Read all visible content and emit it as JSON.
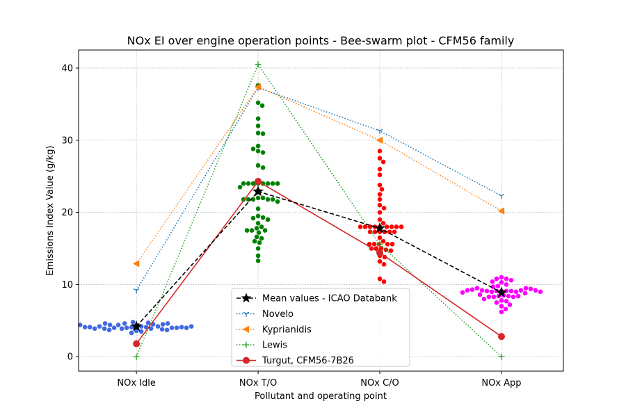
{
  "chart_data": {
    "type": "scatter",
    "title": "NOx EI over engine operation points - Bee-swarm plot - CFM56 family",
    "xlabel": "Pollutant and operating point",
    "ylabel": "Emissions Index Value (g/kg)",
    "categories": [
      "NOx Idle",
      "NOx T/O",
      "NOx C/O",
      "NOx App"
    ],
    "ylim": [
      -2,
      42.5
    ],
    "yticks": [
      0,
      10,
      20,
      30,
      40
    ],
    "grid": true,
    "legend_position": "lower-center",
    "swarm": [
      {
        "category": "NOx Idle",
        "color": "#4169e1",
        "values": [
          4.3,
          4.2,
          4.1,
          4.1,
          4.0,
          3.9,
          3.9,
          4.8,
          4.6,
          4.5,
          4.4,
          4.2,
          4.0,
          3.8,
          3.7,
          3.6,
          3.5,
          3.3,
          3.7,
          3.9,
          4.0,
          4.2,
          4.4,
          4.5,
          4.6,
          4.7,
          4.6,
          4.0,
          3.9,
          4.1,
          4.1,
          4.0,
          4.1,
          4.2,
          4.4
        ]
      },
      {
        "category": "NOx T/O",
        "color": "#008000",
        "values": [
          37.6,
          35.2,
          34.8,
          33.0,
          32.0,
          31.0,
          30.9,
          29.2,
          28.5,
          28.3,
          28.8,
          26.5,
          26.2,
          24.0,
          24.0,
          24.0,
          24.0,
          24.0,
          24.0,
          24.0,
          24.0,
          23.5,
          23.0,
          22.0,
          22.0,
          21.8,
          21.8,
          21.8,
          21.8,
          21.8,
          21.5,
          20.5,
          19.5,
          19.3,
          19.2,
          19.0,
          18.5,
          18.0,
          17.8,
          17.5,
          17.5,
          17.5,
          17.2,
          16.6,
          16.4,
          16.0,
          15.8,
          15.0,
          14.0,
          13.3
        ]
      },
      {
        "category": "NOx C/O",
        "color": "#ff0000",
        "values": [
          28.5,
          27.5,
          27.0,
          26.0,
          25.2,
          23.8,
          23.2,
          22.5,
          21.8,
          21.0,
          20.6,
          20.0,
          19.0,
          18.5,
          18.0,
          18.0,
          18.0,
          18.0,
          18.0,
          18.0,
          18.0,
          18.0,
          18.0,
          17.3,
          17.3,
          17.3,
          17.3,
          17.3,
          17.3,
          16.5,
          16.0,
          15.6,
          15.6,
          15.6,
          15.6,
          15.6,
          15.0,
          15.0,
          15.0,
          14.8,
          14.7,
          14.0,
          13.8,
          13.2,
          12.8,
          10.8,
          10.4
        ]
      },
      {
        "category": "NOx App",
        "color": "#ff00ff",
        "values": [
          9.1,
          9.1,
          9.1,
          9.1,
          9.0,
          9.0,
          9.1,
          9.2,
          9.2,
          11.0,
          10.8,
          10.8,
          10.6,
          10.4,
          10.3,
          10.0,
          9.8,
          9.7,
          9.5,
          9.5,
          9.4,
          9.3,
          9.2,
          9.2,
          9.0,
          8.9,
          8.8,
          8.6,
          8.5,
          8.4,
          8.4,
          8.3,
          8.3,
          8.3,
          8.4,
          8.0,
          7.8,
          7.7,
          7.5,
          7.2,
          7.0,
          6.6,
          6.2
        ]
      }
    ],
    "series": [
      {
        "name": "Mean values - ICAO Databank",
        "color": "#000000",
        "line": "dashed",
        "marker": "star",
        "values": [
          4.2,
          22.9,
          17.8,
          8.9
        ]
      },
      {
        "name": "Novelo",
        "color": "#1f77b4",
        "line": "dotted",
        "marker": "tri-down",
        "values": [
          9.2,
          37.3,
          31.3,
          22.3
        ]
      },
      {
        "name": "Kyprianidis",
        "color": "#ff7f0e",
        "line": "dotted",
        "marker": "triangle-left",
        "values": [
          12.9,
          37.4,
          30.0,
          20.2
        ]
      },
      {
        "name": "Lewis",
        "color": "#2ca02c",
        "line": "dotted",
        "marker": "plus",
        "values": [
          0.0,
          40.5,
          15.6,
          0.0
        ]
      },
      {
        "name": "Turgut, CFM56-7B26",
        "color": "#d62728",
        "line": "solid",
        "marker": "circle",
        "values": [
          1.8,
          24.3,
          14.4,
          2.8
        ]
      }
    ]
  }
}
